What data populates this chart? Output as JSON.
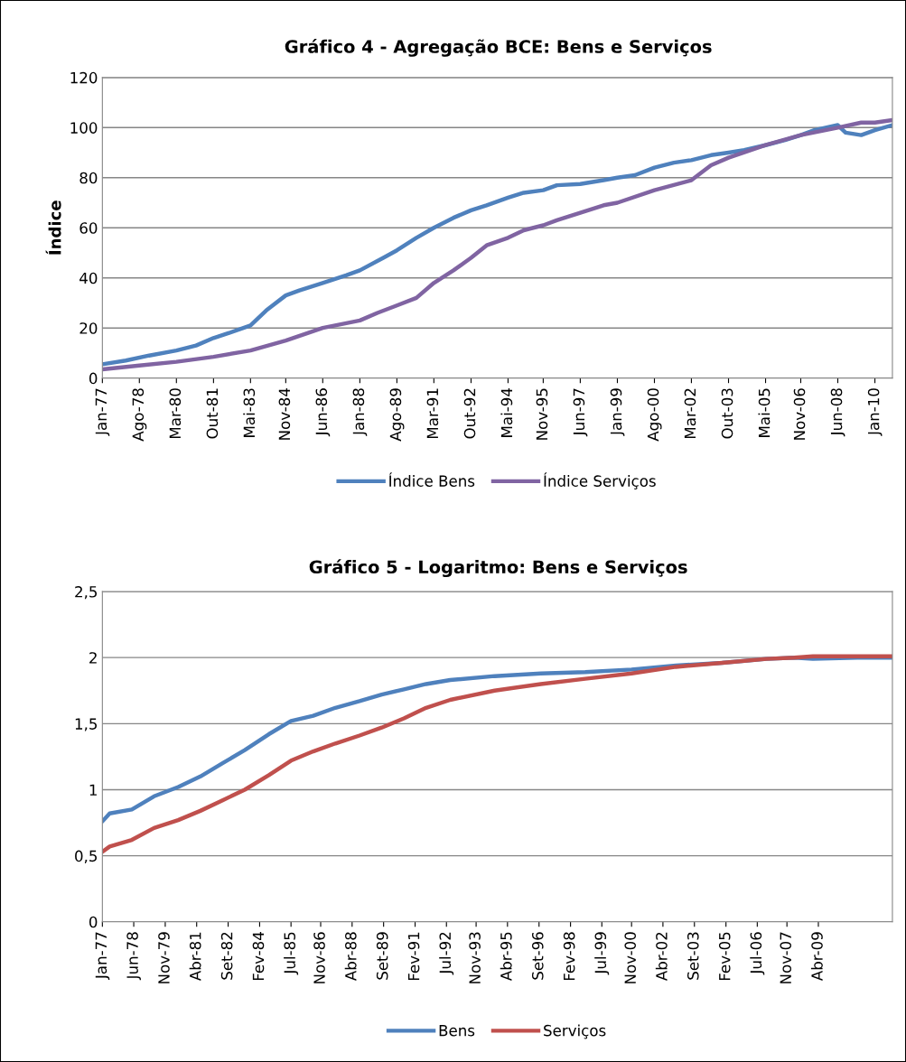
{
  "chart_data": [
    {
      "type": "line",
      "title": "Gráfico 4 - Agregação BCE: Bens e Serviços",
      "ylabel": "Índice",
      "xlim": [
        "1977-01",
        "2010-10"
      ],
      "ylim": [
        0,
        120
      ],
      "yticks": [
        0,
        20,
        40,
        60,
        80,
        100,
        120
      ],
      "xticks": [
        {
          "value": "1977-01",
          "label": "Jan-77"
        },
        {
          "value": "1978-08",
          "label": "Ago-78"
        },
        {
          "value": "1980-03",
          "label": "Mar-80"
        },
        {
          "value": "1981-10",
          "label": "Out-81"
        },
        {
          "value": "1983-05",
          "label": "Mai-83"
        },
        {
          "value": "1984-11",
          "label": "Nov-84"
        },
        {
          "value": "1986-06",
          "label": "Jun-86"
        },
        {
          "value": "1988-01",
          "label": "Jan-88"
        },
        {
          "value": "1989-08",
          "label": "Ago-89"
        },
        {
          "value": "1991-03",
          "label": "Mar-91"
        },
        {
          "value": "1992-10",
          "label": "Out-92"
        },
        {
          "value": "1994-05",
          "label": "Mai-94"
        },
        {
          "value": "1995-11",
          "label": "Nov-95"
        },
        {
          "value": "1997-06",
          "label": "Jun-97"
        },
        {
          "value": "1999-01",
          "label": "Jan-99"
        },
        {
          "value": "2000-08",
          "label": "Ago-00"
        },
        {
          "value": "2002-03",
          "label": "Mar-02"
        },
        {
          "value": "2003-10",
          "label": "Out-03"
        },
        {
          "value": "2005-05",
          "label": "Mai-05"
        },
        {
          "value": "2006-11",
          "label": "Nov-06"
        },
        {
          "value": "2008-06",
          "label": "Jun-08"
        },
        {
          "value": "2010-01",
          "label": "Jan-10"
        }
      ],
      "grid": "y",
      "legend": "bottom",
      "marker": "none",
      "line_style": "solid",
      "series": [
        {
          "name": "Índice Bens",
          "color": "#4f81bd",
          "x": [
            "1977-01",
            "1978-01",
            "1979-01",
            "1980-03",
            "1981-01",
            "1981-10",
            "1982-06",
            "1983-05",
            "1984-01",
            "1984-11",
            "1985-06",
            "1986-06",
            "1987-06",
            "1988-01",
            "1989-01",
            "1989-08",
            "1990-06",
            "1991-03",
            "1992-01",
            "1992-10",
            "1993-06",
            "1994-05",
            "1995-01",
            "1995-11",
            "1996-06",
            "1997-06",
            "1998-06",
            "1999-01",
            "1999-10",
            "2000-08",
            "2001-06",
            "2002-03",
            "2003-01",
            "2003-10",
            "2004-06",
            "2005-05",
            "2006-03",
            "2006-11",
            "2007-06",
            "2008-06",
            "2008-10",
            "2009-06",
            "2010-01",
            "2010-10"
          ],
          "values": [
            5.5,
            7,
            9,
            11,
            13,
            16,
            18,
            21,
            27,
            33,
            35,
            38,
            41,
            43,
            48,
            51,
            56,
            60,
            64,
            67,
            69,
            72,
            74,
            75,
            77,
            77.5,
            79,
            80,
            81,
            84,
            86,
            87,
            89,
            90,
            91,
            93,
            95,
            97,
            99,
            101,
            98,
            97,
            99,
            101
          ]
        },
        {
          "name": "Índice Serviços",
          "color": "#8064a2",
          "x": [
            "1977-01",
            "1978-08",
            "1980-03",
            "1981-10",
            "1983-05",
            "1984-11",
            "1986-06",
            "1988-01",
            "1988-10",
            "1989-08",
            "1990-06",
            "1991-03",
            "1992-01",
            "1992-10",
            "1993-06",
            "1994-05",
            "1995-01",
            "1995-11",
            "1996-06",
            "1997-06",
            "1998-06",
            "1999-01",
            "2000-08",
            "2002-03",
            "2003-01",
            "2003-10",
            "2005-05",
            "2006-11",
            "2008-06",
            "2009-06",
            "2010-01",
            "2010-10"
          ],
          "values": [
            3.5,
            5,
            6.5,
            8.5,
            11,
            15,
            20,
            23,
            26,
            29,
            32,
            38,
            43,
            48,
            53,
            56,
            59,
            61,
            63,
            66,
            69,
            70,
            75,
            79,
            85,
            88,
            93,
            97,
            100,
            102,
            102,
            103
          ]
        }
      ]
    },
    {
      "type": "line",
      "title": "Gráfico 5 - Logaritmo: Bens e Serviços",
      "xlim": [
        "1977-01",
        "2012-08"
      ],
      "ylim": [
        0,
        2.5
      ],
      "yticks": [
        0,
        {
          "value": 0.5,
          "label": "0,5"
        },
        1,
        {
          "value": 1.5,
          "label": "1,5"
        },
        2,
        {
          "value": 2.5,
          "label": "2,5"
        }
      ],
      "xticks": [
        {
          "value": "1977-01",
          "label": "Jan-77"
        },
        {
          "value": "1978-06",
          "label": "Jun-78"
        },
        {
          "value": "1979-11",
          "label": "Nov-79"
        },
        {
          "value": "1981-04",
          "label": "Abr-81"
        },
        {
          "value": "1982-09",
          "label": "Set-82"
        },
        {
          "value": "1984-02",
          "label": "Fev-84"
        },
        {
          "value": "1985-07",
          "label": "Jul-85"
        },
        {
          "value": "1986-11",
          "label": "Nov-86"
        },
        {
          "value": "1988-04",
          "label": "Abr-88"
        },
        {
          "value": "1989-09",
          "label": "Set-89"
        },
        {
          "value": "1991-02",
          "label": "Fev-91"
        },
        {
          "value": "1992-07",
          "label": "Jul-92"
        },
        {
          "value": "1993-11",
          "label": "Nov-93"
        },
        {
          "value": "1995-04",
          "label": "Abr-95"
        },
        {
          "value": "1996-09",
          "label": "Set-96"
        },
        {
          "value": "1998-02",
          "label": "Fev-98"
        },
        {
          "value": "1999-07",
          "label": "Jul-99"
        },
        {
          "value": "2000-11",
          "label": "Nov-00"
        },
        {
          "value": "2002-04",
          "label": "Abr-02"
        },
        {
          "value": "2003-09",
          "label": "Set-03"
        },
        {
          "value": "2005-02",
          "label": "Fev-05"
        },
        {
          "value": "2006-07",
          "label": "Jul-06"
        },
        {
          "value": "2007-11",
          "label": "Nov-07"
        },
        {
          "value": "2009-04",
          "label": "Abr-09"
        }
      ],
      "grid": "y",
      "legend": "bottom",
      "marker": "none",
      "line_style": "solid",
      "series": [
        {
          "name": "Bens",
          "color": "#4f81bd",
          "x": [
            "1977-01",
            "1977-05",
            "1978-05",
            "1979-05",
            "1980-06",
            "1981-06",
            "1982-06",
            "1983-06",
            "1984-07",
            "1985-07",
            "1986-07",
            "1987-07",
            "1988-08",
            "1989-08",
            "1990-08",
            "1991-08",
            "1992-09",
            "1994-09",
            "1996-10",
            "1998-10",
            "2000-11",
            "2002-11",
            "2004-12",
            "2006-12",
            "2008-03",
            "2009-01",
            "2011-01",
            "2012-08"
          ],
          "values": [
            0.76,
            0.82,
            0.85,
            0.95,
            1.02,
            1.1,
            1.2,
            1.3,
            1.42,
            1.52,
            1.56,
            1.62,
            1.67,
            1.72,
            1.76,
            1.8,
            1.83,
            1.86,
            1.88,
            1.89,
            1.91,
            1.94,
            1.96,
            1.99,
            2.0,
            1.99,
            2.0,
            2.0
          ]
        },
        {
          "name": "Serviços",
          "color": "#c0504d",
          "x": [
            "1977-01",
            "1977-05",
            "1978-05",
            "1979-05",
            "1980-06",
            "1981-06",
            "1982-06",
            "1983-06",
            "1984-07",
            "1985-07",
            "1986-07",
            "1987-07",
            "1988-08",
            "1989-08",
            "1990-08",
            "1991-08",
            "1992-09",
            "1994-09",
            "1996-10",
            "1998-10",
            "2000-11",
            "2002-11",
            "2004-12",
            "2006-12",
            "2008-03",
            "2009-01",
            "2011-01",
            "2012-08"
          ],
          "values": [
            0.53,
            0.57,
            0.62,
            0.71,
            0.77,
            0.84,
            0.92,
            1.0,
            1.11,
            1.22,
            1.29,
            1.35,
            1.41,
            1.47,
            1.54,
            1.62,
            1.68,
            1.75,
            1.8,
            1.84,
            1.88,
            1.93,
            1.96,
            1.99,
            2.0,
            2.01,
            2.01,
            2.01
          ]
        }
      ]
    }
  ]
}
